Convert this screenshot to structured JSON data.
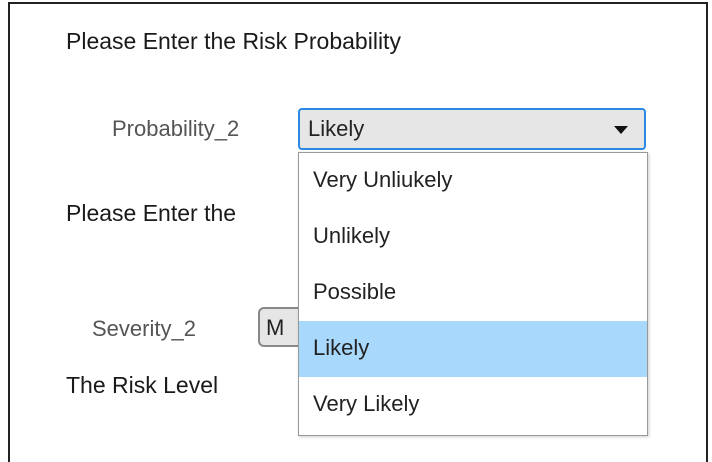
{
  "heading": "Please Enter the Risk Probability",
  "probability": {
    "label": "Probability_2",
    "selected": "Likely",
    "options": [
      "Very Unliukely",
      "Unlikely",
      "Possible",
      "Likely",
      "Very Likely"
    ],
    "highlighted": 3
  },
  "severity_heading": "Please Enter the",
  "severity": {
    "label": "Severity_2",
    "selected": "M"
  },
  "risk_heading": "The Risk Level"
}
